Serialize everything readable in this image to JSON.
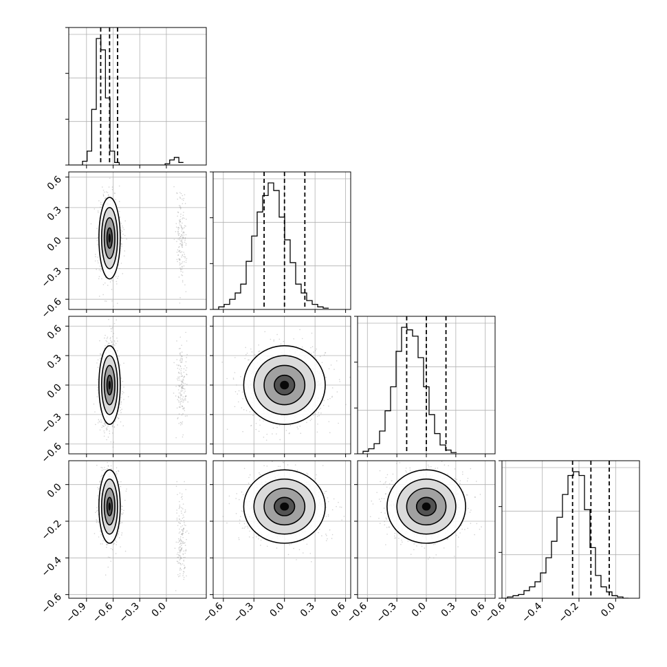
{
  "chart_data": {
    "type": "corner",
    "grid": true,
    "dimensions": 4,
    "axis_ranges": [
      [
        -1.1,
        0.45
      ],
      [
        -0.7,
        0.65
      ],
      [
        -0.7,
        0.7
      ],
      [
        -0.62,
        0.13
      ]
    ],
    "x_tick_labels": [
      [
        "−0.9",
        "−0.6",
        "−0.3",
        "0.0"
      ],
      [
        "−0.6",
        "−0.3",
        "0.0",
        "0.3",
        "0.6"
      ],
      [
        "−0.6",
        "−0.3",
        "0.0",
        "0.3",
        "0.6"
      ],
      [
        "−0.6",
        "−0.4",
        "−0.2",
        "0.0"
      ]
    ],
    "y_tick_labels": [
      null,
      [
        "0.6",
        "0.3",
        "0.0",
        "−0.3",
        "−0.6"
      ],
      [
        "0.6",
        "0.3",
        "0.0",
        "−0.3",
        "−0.6"
      ],
      [
        "0.0",
        "−0.2",
        "−0.4",
        "−0.6"
      ]
    ],
    "marginal_quantiles": [
      [
        -0.74,
        -0.64,
        -0.55
      ],
      [
        -0.2,
        0.0,
        0.2
      ],
      [
        -0.2,
        0.0,
        0.2
      ],
      [
        -0.235,
        -0.135,
        -0.035
      ]
    ],
    "marginal_histograms": [
      {
        "bin_start": -1.1,
        "bin_width": 0.0517,
        "counts": [
          0,
          0,
          0,
          0.03,
          0.11,
          0.44,
          1.0,
          0.91,
          0.53,
          0.11,
          0.02,
          0,
          0,
          0,
          0,
          0,
          0,
          0,
          0,
          0,
          0,
          0.01,
          0.04,
          0.06,
          0.02
        ]
      },
      {
        "bin_start": -0.7,
        "bin_width": 0.054,
        "counts": [
          0,
          0.02,
          0.04,
          0.08,
          0.13,
          0.2,
          0.38,
          0.58,
          0.77,
          0.9,
          1.0,
          0.94,
          0.73,
          0.55,
          0.37,
          0.2,
          0.13,
          0.07,
          0.04,
          0.02,
          0.01
        ]
      },
      {
        "bin_start": -0.7,
        "bin_width": 0.056,
        "counts": [
          0,
          0.02,
          0.04,
          0.08,
          0.18,
          0.34,
          0.53,
          0.81,
          1.0,
          0.98,
          0.93,
          0.76,
          0.53,
          0.31,
          0.16,
          0.07,
          0.03,
          0.01
        ]
      },
      {
        "bin_start": -0.62,
        "bin_width": 0.03,
        "counts": [
          0,
          0.01,
          0.02,
          0.03,
          0.06,
          0.09,
          0.13,
          0.2,
          0.32,
          0.45,
          0.64,
          0.82,
          0.97,
          1.0,
          0.97,
          0.7,
          0.4,
          0.18,
          0.09,
          0.05,
          0.02,
          0.01,
          0
        ]
      }
    ],
    "joint_panels": [
      {
        "row": 1,
        "col": 0,
        "center": [
          -0.64,
          0.0
        ],
        "sd": [
          0.06,
          0.2
        ],
        "secondary_cluster": {
          "center": [
            0.17,
            0.0
          ],
          "sd": [
            0.03,
            0.22
          ]
        }
      },
      {
        "row": 2,
        "col": 0,
        "center": [
          -0.64,
          0.0
        ],
        "sd": [
          0.06,
          0.2
        ],
        "secondary_cluster": {
          "center": [
            0.17,
            0.0
          ],
          "sd": [
            0.03,
            0.22
          ]
        }
      },
      {
        "row": 3,
        "col": 0,
        "center": [
          -0.64,
          -0.12
        ],
        "sd": [
          0.06,
          0.1
        ],
        "secondary_cluster": {
          "center": [
            0.17,
            -0.33
          ],
          "sd": [
            0.03,
            0.12
          ]
        }
      },
      {
        "row": 2,
        "col": 1,
        "center": [
          0.0,
          0.0
        ],
        "sd": [
          0.2,
          0.2
        ]
      },
      {
        "row": 3,
        "col": 1,
        "center": [
          0.0,
          -0.12
        ],
        "sd": [
          0.2,
          0.1
        ]
      },
      {
        "row": 3,
        "col": 2,
        "center": [
          0.0,
          -0.12
        ],
        "sd": [
          0.2,
          0.1
        ]
      }
    ]
  }
}
